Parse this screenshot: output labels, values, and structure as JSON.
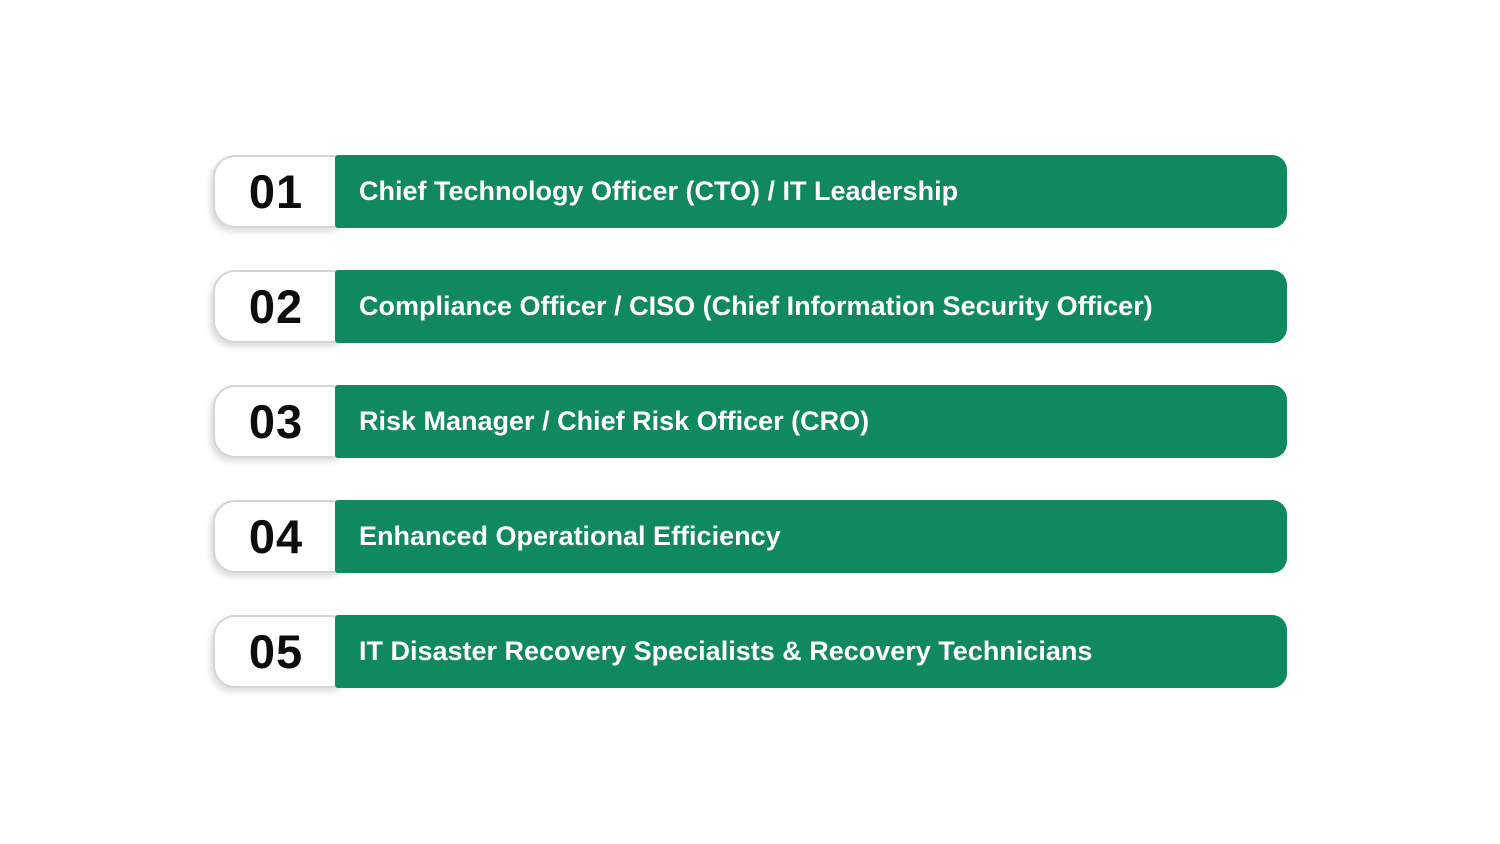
{
  "theme": {
    "bg": "#ffffff",
    "bar_green": "#10895e",
    "bar_text": "#ffffff",
    "number_text": "#0d0d0d",
    "badge_bg": "#ffffff",
    "badge_border": "#d5d5d5"
  },
  "list": {
    "items": [
      {
        "number": "01",
        "label": "Chief Technology Officer (CTO) / IT Leadership"
      },
      {
        "number": "02",
        "label": "Compliance Officer / CISO (Chief Information Security Officer)"
      },
      {
        "number": "03",
        "label": "Risk Manager / Chief Risk Officer (CRO)"
      },
      {
        "number": "04",
        "label": "Enhanced Operational Efficiency"
      },
      {
        "number": "05",
        "label": "IT Disaster Recovery Specialists & Recovery Technicians"
      }
    ]
  }
}
